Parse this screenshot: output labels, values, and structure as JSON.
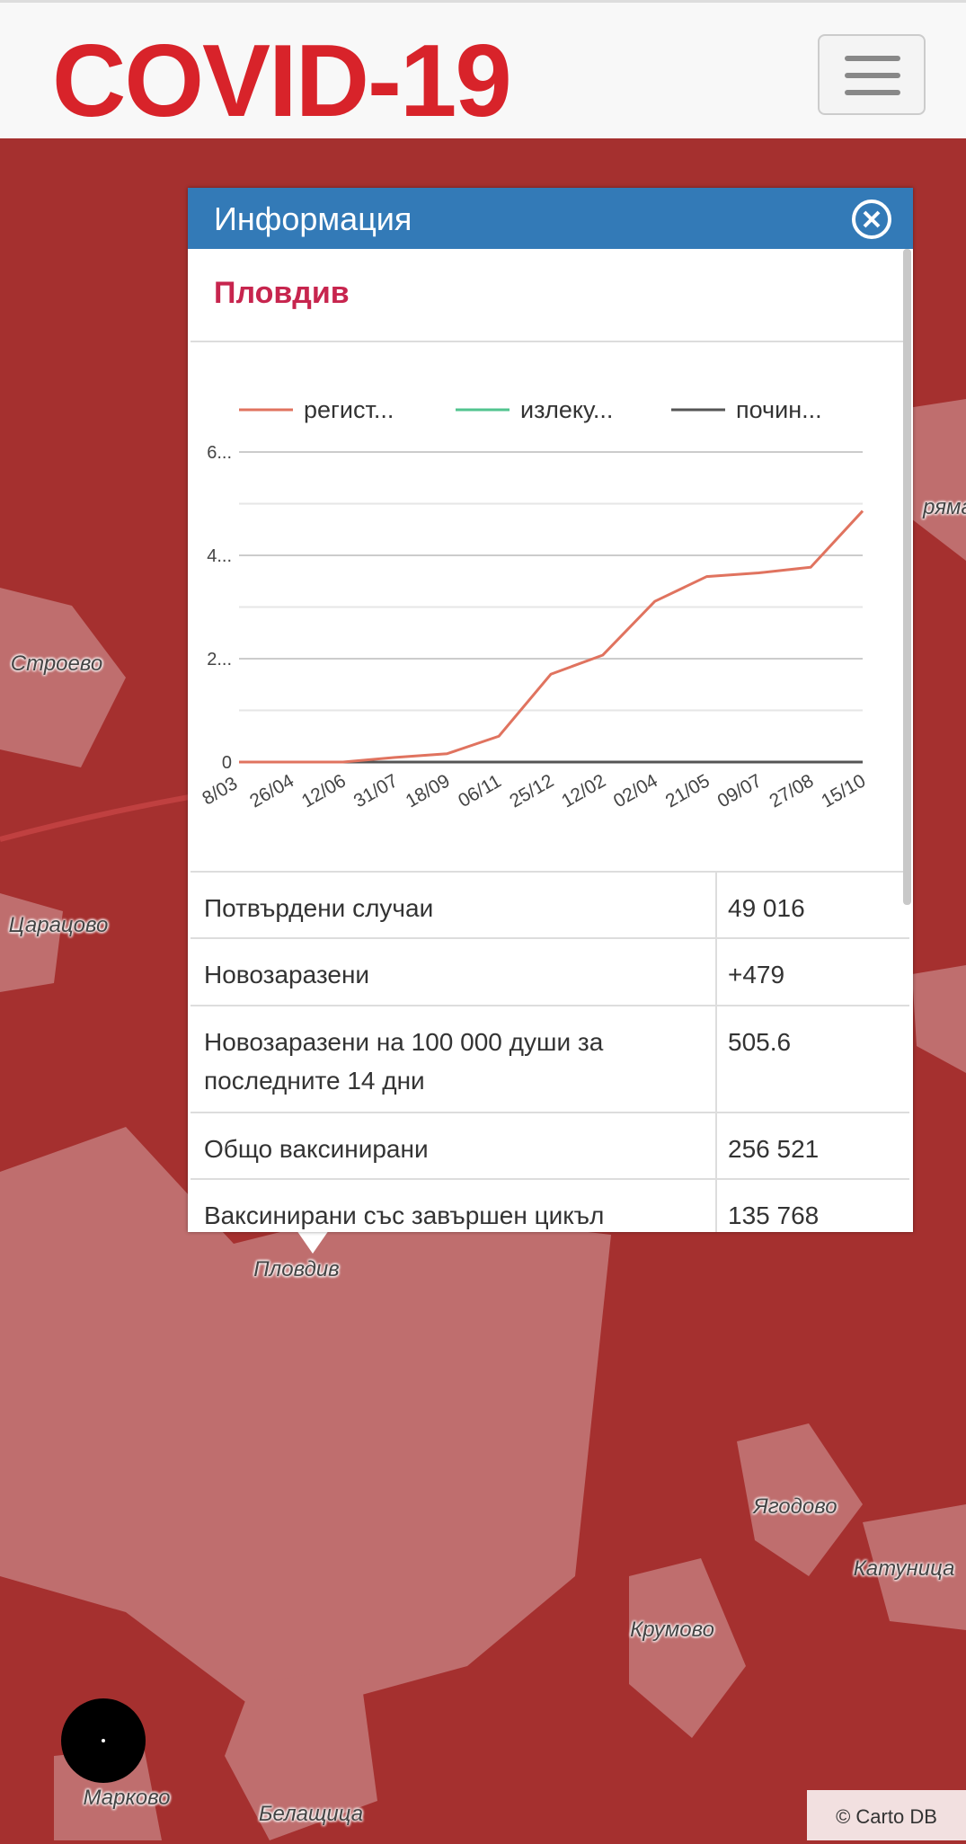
{
  "header": {
    "title": "COVID-19"
  },
  "map": {
    "labels": [
      "Строево",
      "Царацово",
      "Пловдив",
      "Ягодово",
      "Катуница",
      "Крумово",
      "Марково",
      "Белащица",
      "ряма"
    ],
    "attribution": "© Carto DB"
  },
  "popup": {
    "title": "Информация",
    "region": "Пловдив",
    "table": {
      "rows": [
        [
          "Потвърдени случаи",
          "49 016"
        ],
        [
          "Новозаразени",
          "+479"
        ],
        [
          "Новозаразени на 100 000 души за последните 14 дни",
          "505.6"
        ],
        [
          "Общо ваксинирани",
          "256 521"
        ],
        [
          "Ваксинирани със завършен цикъл",
          "135 768"
        ]
      ]
    }
  },
  "chart_data": {
    "type": "line",
    "categories": [
      "8/03",
      "26/04",
      "12/06",
      "31/07",
      "18/09",
      "06/11",
      "25/12",
      "12/02",
      "02/04",
      "21/05",
      "09/07",
      "27/08",
      "15/10"
    ],
    "series": [
      {
        "name": "излеку...",
        "color": "#52c48f",
        "values": [
          0,
          0,
          0,
          0,
          0,
          0,
          0,
          0,
          0,
          0,
          0,
          0,
          0
        ]
      },
      {
        "name": "почин...",
        "color": "#555555",
        "values": [
          0,
          0,
          0,
          0,
          0,
          0,
          0,
          0,
          0,
          0,
          0,
          0,
          0
        ]
      },
      {
        "name": "регист...",
        "color": "#e0735f",
        "values": [
          0,
          0,
          0,
          900,
          1600,
          5000,
          17000,
          20700,
          31100,
          35900,
          36600,
          37700,
          48600
        ]
      }
    ],
    "ylim": [
      0,
      60000
    ],
    "yticks": [
      0,
      {
        "value": 20000,
        "label": "2..."
      },
      {
        "value": 40000,
        "label": "4..."
      },
      {
        "value": 60000,
        "label": "6..."
      }
    ],
    "minor_yticks": [
      10000,
      30000,
      50000
    ],
    "grid": true,
    "legend": "top"
  }
}
